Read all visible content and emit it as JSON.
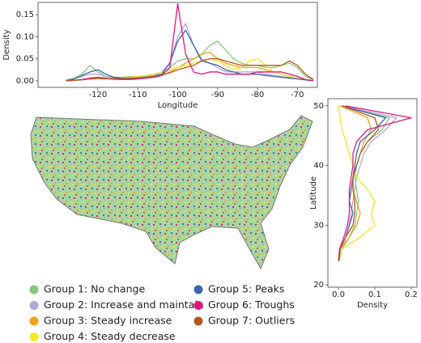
{
  "chart_data": [
    {
      "type": "line",
      "xlabel": "Longitude",
      "ylabel": "Density",
      "x": [
        -128,
        -126,
        -124,
        -122,
        -120,
        -118,
        -116,
        -114,
        -112,
        -110,
        -108,
        -106,
        -104,
        -102,
        -100,
        -98,
        -96,
        -94,
        -92,
        -90,
        -88,
        -86,
        -84,
        -82,
        -80,
        -78,
        -76,
        -74,
        -72,
        -70,
        -68,
        -66
      ],
      "xlim": [
        -135,
        -65
      ],
      "xticks": [
        -120,
        -110,
        -100,
        -90,
        -80,
        -70
      ],
      "ylim": [
        -0.015,
        0.178
      ],
      "yticks": [
        {
          "value": 0,
          "label": "0.00"
        },
        {
          "value": 0.05,
          "label": "0.05"
        },
        {
          "value": 0.1,
          "label": "0.10"
        },
        {
          "value": 0.15,
          "label": "0.15"
        }
      ],
      "grid": false,
      "series": [
        {
          "name": "Group 1: No change",
          "color": "#86c77d",
          "values": [
            0.002,
            0.006,
            0.015,
            0.035,
            0.02,
            0.01,
            0.008,
            0.008,
            0.01,
            0.01,
            0.01,
            0.012,
            0.015,
            0.03,
            0.045,
            0.05,
            0.05,
            0.06,
            0.08,
            0.09,
            0.07,
            0.05,
            0.04,
            0.035,
            0.035,
            0.03,
            0.03,
            0.035,
            0.04,
            0.03,
            0.01,
            0.002
          ]
        },
        {
          "name": "Group 2: Increase and maintain",
          "color": "#b3a7d6",
          "values": [
            0.001,
            0.004,
            0.01,
            0.015,
            0.015,
            0.01,
            0.006,
            0.005,
            0.005,
            0.005,
            0.008,
            0.012,
            0.02,
            0.04,
            0.1,
            0.13,
            0.08,
            0.05,
            0.04,
            0.03,
            0.02,
            0.02,
            0.02,
            0.02,
            0.02,
            0.015,
            0.012,
            0.01,
            0.008,
            0.005,
            0.002,
            0
          ]
        },
        {
          "name": "Group 3: Steady increase",
          "color": "#f4a11d",
          "values": [
            0,
            0.001,
            0.003,
            0.005,
            0.005,
            0.004,
            0.003,
            0.003,
            0.004,
            0.005,
            0.006,
            0.008,
            0.012,
            0.02,
            0.03,
            0.04,
            0.05,
            0.06,
            0.065,
            0.05,
            0.04,
            0.035,
            0.03,
            0.03,
            0.03,
            0.025,
            0.02,
            0.015,
            0.01,
            0.006,
            0.002,
            0
          ]
        },
        {
          "name": "Group 4: Steady decrease",
          "color": "#f2e824",
          "values": [
            0,
            0.001,
            0.002,
            0.004,
            0.005,
            0.005,
            0.005,
            0.006,
            0.008,
            0.01,
            0.012,
            0.015,
            0.02,
            0.025,
            0.03,
            0.035,
            0.04,
            0.045,
            0.05,
            0.045,
            0.035,
            0.025,
            0.03,
            0.045,
            0.05,
            0.035,
            0.02,
            0.015,
            0.01,
            0.006,
            0.002,
            0
          ]
        },
        {
          "name": "Group 5: Peaks",
          "color": "#3b66b0",
          "values": [
            0,
            0.004,
            0.012,
            0.02,
            0.025,
            0.015,
            0.008,
            0.006,
            0.005,
            0.005,
            0.007,
            0.01,
            0.015,
            0.04,
            0.09,
            0.115,
            0.08,
            0.045,
            0.04,
            0.035,
            0.025,
            0.02,
            0.015,
            0.015,
            0.015,
            0.012,
            0.01,
            0.008,
            0.006,
            0.004,
            0.002,
            0
          ]
        },
        {
          "name": "Group 6: Troughs",
          "color": "#e0157f",
          "values": [
            0,
            0.001,
            0.003,
            0.006,
            0.008,
            0.006,
            0.004,
            0.003,
            0.003,
            0.004,
            0.006,
            0.008,
            0.012,
            0.03,
            0.175,
            0.06,
            0.02,
            0.015,
            0.02,
            0.02,
            0.015,
            0.015,
            0.015,
            0.015,
            0.02,
            0.02,
            0.02,
            0.02,
            0.015,
            0.01,
            0.003,
            0
          ]
        },
        {
          "name": "Group 7: Outliers",
          "color": "#b5581e",
          "values": [
            0,
            0.001,
            0.002,
            0.004,
            0.005,
            0.005,
            0.005,
            0.005,
            0.006,
            0.007,
            0.008,
            0.01,
            0.013,
            0.018,
            0.025,
            0.03,
            0.035,
            0.045,
            0.05,
            0.05,
            0.045,
            0.04,
            0.035,
            0.035,
            0.035,
            0.035,
            0.035,
            0.035,
            0.045,
            0.035,
            0.015,
            0.003
          ]
        }
      ]
    },
    {
      "type": "line",
      "xlabel": "Density",
      "ylabel": "Latitude",
      "y": [
        24,
        26,
        28,
        30,
        32,
        34,
        36,
        38,
        40,
        42,
        44,
        46,
        48,
        50
      ],
      "xlim": [
        -0.029,
        0.216
      ],
      "xticks": [
        {
          "value": 0,
          "label": "0.0"
        },
        {
          "value": 0.1,
          "label": "0.1"
        },
        {
          "value": 0.2,
          "label": "0.2"
        }
      ],
      "ylim": [
        19.6,
        51.2
      ],
      "yticks": [
        20,
        30,
        40,
        50
      ],
      "grid": false,
      "series": [
        {
          "color": "#86c77d",
          "values": [
            0.002,
            0.01,
            0.03,
            0.045,
            0.05,
            0.055,
            0.05,
            0.045,
            0.05,
            0.06,
            0.08,
            0.12,
            0.14,
            0.01
          ]
        },
        {
          "color": "#b3a7d6",
          "values": [
            0.001,
            0.005,
            0.02,
            0.03,
            0.035,
            0.04,
            0.045,
            0.05,
            0.06,
            0.07,
            0.09,
            0.13,
            0.16,
            0.01
          ]
        },
        {
          "color": "#f4a11d",
          "values": [
            0,
            0.005,
            0.03,
            0.05,
            0.06,
            0.05,
            0.04,
            0.04,
            0.05,
            0.06,
            0.07,
            0.09,
            0.08,
            0.005
          ]
        },
        {
          "color": "#f2e824",
          "values": [
            0,
            0.01,
            0.06,
            0.1,
            0.09,
            0.1,
            0.08,
            0.05,
            0.04,
            0.03,
            0.02,
            0.01,
            0.005,
            0
          ]
        },
        {
          "color": "#3b66b0",
          "values": [
            0.001,
            0.005,
            0.02,
            0.03,
            0.04,
            0.03,
            0.035,
            0.04,
            0.045,
            0.05,
            0.06,
            0.1,
            0.13,
            0.01
          ]
        },
        {
          "color": "#e0157f",
          "values": [
            0,
            0.003,
            0.015,
            0.025,
            0.03,
            0.03,
            0.03,
            0.035,
            0.04,
            0.04,
            0.05,
            0.08,
            0.2,
            0.02
          ]
        },
        {
          "color": "#b5581e",
          "values": [
            0,
            0.004,
            0.02,
            0.04,
            0.045,
            0.045,
            0.04,
            0.04,
            0.05,
            0.06,
            0.08,
            0.11,
            0.1,
            0.01
          ]
        }
      ]
    }
  ]
}
